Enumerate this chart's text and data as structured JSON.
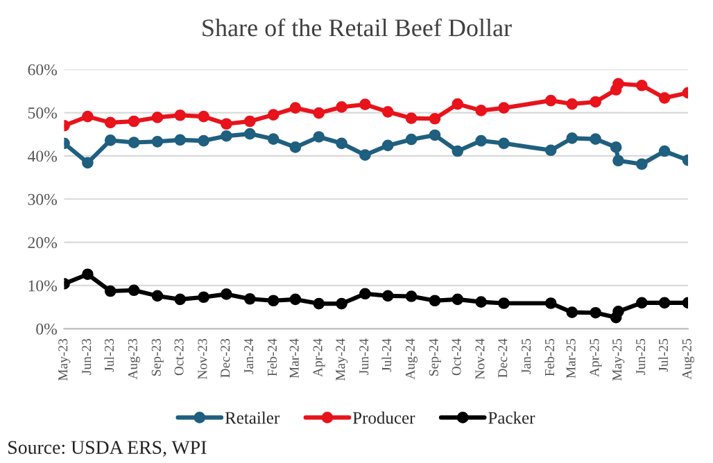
{
  "chart_data": {
    "type": "line",
    "title": "Share of the Retail Beef Dollar",
    "x": [
      "2023-05-01",
      "2023-06-01",
      "2023-07-01",
      "2023-08-01",
      "2023-09-01",
      "2023-10-01",
      "2023-11-01",
      "2023-12-01",
      "2024-01-01",
      "2024-02-01",
      "2024-03-01",
      "2024-04-01",
      "2024-05-01",
      "2024-06-01",
      "2024-07-01",
      "2024-08-01",
      "2024-09-01",
      "2024-10-01",
      "2024-11-01",
      "2024-12-01",
      "2025-02-01",
      "2025-03-01",
      "2025-04-01",
      "2025-04-28",
      "2025-05-01",
      "2025-06-01",
      "2025-07-01",
      "2025-08-01"
    ],
    "series": [
      {
        "name": "Retailer",
        "color": "#1f5f7f",
        "values": [
          42.9,
          38.4,
          43.6,
          43.1,
          43.3,
          43.7,
          43.5,
          44.6,
          45.1,
          43.9,
          42.0,
          44.4,
          42.9,
          40.2,
          42.4,
          43.8,
          44.8,
          41.1,
          43.5,
          42.9,
          41.3,
          44.1,
          43.9,
          42.0,
          38.9,
          38.1,
          41.1,
          39.0
        ]
      },
      {
        "name": "Producer",
        "color": "#e8131b",
        "values": [
          47.0,
          49.1,
          47.7,
          48.0,
          48.9,
          49.4,
          49.1,
          47.4,
          48.0,
          49.5,
          51.1,
          49.9,
          51.3,
          51.9,
          50.2,
          48.7,
          48.6,
          52.0,
          50.5,
          51.1,
          52.8,
          52.0,
          52.5,
          55.3,
          56.7,
          56.3,
          53.4,
          54.6
        ]
      },
      {
        "name": "Packer",
        "color": "#000000",
        "values": [
          10.4,
          12.6,
          8.7,
          8.9,
          7.6,
          6.8,
          7.3,
          8.0,
          6.9,
          6.5,
          6.8,
          5.8,
          5.8,
          8.1,
          7.6,
          7.5,
          6.5,
          6.8,
          6.2,
          5.9,
          5.9,
          3.8,
          3.7,
          2.6,
          4.0,
          6.0,
          6.0,
          6.0
        ]
      }
    ],
    "xlim": [
      "2023-05-01",
      "2025-08-01"
    ],
    "xticks": [
      {
        "value": "2023-05-01",
        "label": "May-23"
      },
      {
        "value": "2023-06-01",
        "label": "Jun-23"
      },
      {
        "value": "2023-07-01",
        "label": "Jul-23"
      },
      {
        "value": "2023-08-01",
        "label": "Aug-23"
      },
      {
        "value": "2023-09-01",
        "label": "Sep-23"
      },
      {
        "value": "2023-10-01",
        "label": "Oct-23"
      },
      {
        "value": "2023-11-01",
        "label": "Nov-23"
      },
      {
        "value": "2023-12-01",
        "label": "Dec-23"
      },
      {
        "value": "2024-01-01",
        "label": "Jan-24"
      },
      {
        "value": "2024-02-01",
        "label": "Feb-24"
      },
      {
        "value": "2024-03-01",
        "label": "Mar-24"
      },
      {
        "value": "2024-04-01",
        "label": "Apr-24"
      },
      {
        "value": "2024-05-01",
        "label": "May-24"
      },
      {
        "value": "2024-06-01",
        "label": "Jun-24"
      },
      {
        "value": "2024-07-01",
        "label": "Jul-24"
      },
      {
        "value": "2024-08-01",
        "label": "Aug-24"
      },
      {
        "value": "2024-09-01",
        "label": "Sep-24"
      },
      {
        "value": "2024-10-01",
        "label": "Oct-24"
      },
      {
        "value": "2024-11-01",
        "label": "Nov-24"
      },
      {
        "value": "2024-12-01",
        "label": "Dec-24"
      },
      {
        "value": "2025-01-01",
        "label": "Jan-25"
      },
      {
        "value": "2025-02-01",
        "label": "Feb-25"
      },
      {
        "value": "2025-03-01",
        "label": "Mar-25"
      },
      {
        "value": "2025-04-01",
        "label": "Apr-25"
      },
      {
        "value": "2025-05-01",
        "label": "May-25"
      },
      {
        "value": "2025-06-01",
        "label": "Jun-25"
      },
      {
        "value": "2025-07-01",
        "label": "Jul-25"
      },
      {
        "value": "2025-08-01",
        "label": "Aug-25"
      }
    ],
    "ylim": [
      0,
      60
    ],
    "yticks": [
      {
        "value": 0,
        "label": "0%"
      },
      {
        "value": 10,
        "label": "10%"
      },
      {
        "value": 20,
        "label": "20%"
      },
      {
        "value": 30,
        "label": "30%"
      },
      {
        "value": 40,
        "label": "40%"
      },
      {
        "value": 50,
        "label": "50%"
      },
      {
        "value": 60,
        "label": "60%"
      }
    ],
    "grid": "y",
    "legend": "bottom",
    "marker": "circle",
    "line_style": "solid",
    "annotations": [
      "Source: USDA ERS, WPI"
    ]
  }
}
